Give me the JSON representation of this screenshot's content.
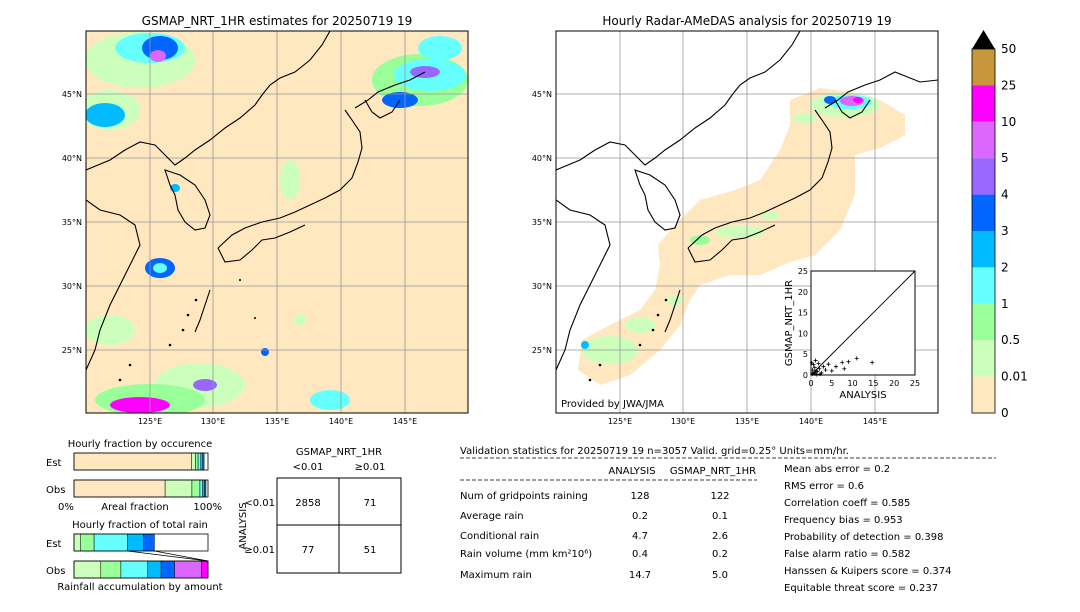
{
  "left_map": {
    "title": "GSMAP_NRT_1HR estimates for 20250719 19",
    "lat_labels": [
      "45°N",
      "40°N",
      "35°N",
      "30°N",
      "25°N"
    ],
    "lon_labels": [
      "125°E",
      "130°E",
      "135°E",
      "140°E",
      "145°E"
    ]
  },
  "right_map": {
    "title": "Hourly Radar-AMeDAS analysis for 20250719 19",
    "lat_labels": [
      "45°N",
      "40°N",
      "35°N",
      "30°N",
      "25°N"
    ],
    "lon_labels": [
      "125°E",
      "130°E",
      "135°E",
      "140°E",
      "145°E"
    ],
    "credit": "Provided by JWA/JMA"
  },
  "colorbar": {
    "labels": [
      "50",
      "25",
      "10",
      "5",
      "4",
      "3",
      "2",
      "1",
      "0.5",
      "0.01",
      "0"
    ],
    "colors": [
      "#c8963c",
      "#ff00ff",
      "#dd66ff",
      "#9966ff",
      "#0066ff",
      "#00bbff",
      "#66ffff",
      "#99ff99",
      "#ccffbb",
      "#ffe8c0"
    ]
  },
  "chart_data": [
    {
      "type": "scatter",
      "xlabel": "ANALYSIS",
      "ylabel": "GSMAP_NRT_1HR",
      "xlim": [
        0,
        25
      ],
      "ylim": [
        0,
        25
      ],
      "ticks": [
        "0",
        "5",
        "10",
        "15",
        "20",
        "25"
      ],
      "points": [
        [
          0.3,
          0.2
        ],
        [
          0.5,
          0.4
        ],
        [
          0.8,
          0.6
        ],
        [
          1.0,
          0.3
        ],
        [
          1.2,
          1.0
        ],
        [
          1.5,
          0.8
        ],
        [
          2.0,
          1.5
        ],
        [
          2.5,
          0.5
        ],
        [
          3.0,
          2.0
        ],
        [
          0.4,
          1.2
        ],
        [
          0.6,
          2.5
        ],
        [
          1.1,
          3.5
        ],
        [
          0.9,
          1.8
        ],
        [
          1.8,
          2.8
        ],
        [
          3.5,
          1.2
        ],
        [
          4.2,
          2.6
        ],
        [
          5.0,
          1.0
        ],
        [
          6.0,
          2.0
        ],
        [
          7.5,
          3.0
        ],
        [
          8.0,
          1.5
        ],
        [
          9.0,
          3.2
        ],
        [
          11.0,
          4.0
        ],
        [
          14.7,
          3.0
        ],
        [
          2.2,
          0.2
        ],
        [
          0.2,
          2.9
        ],
        [
          1.4,
          0.1
        ]
      ]
    },
    {
      "type": "table",
      "title": "Hourly fraction by occurence",
      "rows": [
        "Est",
        "Obs"
      ],
      "xlabel": "Areal fraction",
      "x_ticks": [
        "0%",
        "100%"
      ],
      "segments": {
        "Est": [
          {
            "frac": 0.876,
            "color": "#ffe8c0"
          },
          {
            "frac": 0.03,
            "color": "#ccffbb"
          },
          {
            "frac": 0.02,
            "color": "#99ff99"
          },
          {
            "frac": 0.02,
            "color": "#66ffff"
          },
          {
            "frac": 0.015,
            "color": "#00bbff"
          },
          {
            "frac": 0.01,
            "color": "#0066ff"
          }
        ],
        "Obs": [
          {
            "frac": 0.68,
            "color": "#ffe8c0"
          },
          {
            "frac": 0.2,
            "color": "#ccffbb"
          },
          {
            "frac": 0.06,
            "color": "#99ff99"
          },
          {
            "frac": 0.02,
            "color": "#66ffff"
          },
          {
            "frac": 0.015,
            "color": "#00bbff"
          },
          {
            "frac": 0.01,
            "color": "#0066ff"
          }
        ]
      }
    },
    {
      "type": "table",
      "title": "Hourly fraction of total rain",
      "rows": [
        "Est",
        "Obs"
      ],
      "xlabel": "Rainfall accumulation by amount",
      "segments": {
        "Est": [
          {
            "frac": 0.05,
            "color": "#ccffbb"
          },
          {
            "frac": 0.1,
            "color": "#99ff99"
          },
          {
            "frac": 0.25,
            "color": "#66ffff"
          },
          {
            "frac": 0.12,
            "color": "#00bbff"
          },
          {
            "frac": 0.08,
            "color": "#0066ff"
          }
        ],
        "Obs": [
          {
            "frac": 0.2,
            "color": "#ccffbb"
          },
          {
            "frac": 0.15,
            "color": "#99ff99"
          },
          {
            "frac": 0.2,
            "color": "#66ffff"
          },
          {
            "frac": 0.1,
            "color": "#00bbff"
          },
          {
            "frac": 0.1,
            "color": "#0066ff"
          },
          {
            "frac": 0.2,
            "color": "#dd66ff"
          },
          {
            "frac": 0.05,
            "color": "#ff00ff"
          }
        ]
      }
    },
    {
      "type": "table",
      "title": "GSMAP_NRT_1HR",
      "col_headers": [
        "<0.01",
        "≥0.01"
      ],
      "row_axis_label": "ANALYSIS",
      "row_headers": [
        "<0.01",
        "≥0.01"
      ],
      "cells": [
        [
          "2858",
          "71"
        ],
        [
          "77",
          "51"
        ]
      ]
    }
  ],
  "stats": {
    "header": "Validation statistics for 20250719 19  n=3057 Valid. grid=0.25° Units=mm/hr.",
    "col_analysis": "ANALYSIS",
    "col_gsmap": "GSMAP_NRT_1HR",
    "rows": [
      {
        "label": "Num of gridpoints raining",
        "analysis": "128",
        "gsmap": "122"
      },
      {
        "label": "Average rain",
        "analysis": "0.2",
        "gsmap": "0.1"
      },
      {
        "label": "Conditional rain",
        "analysis": "4.7",
        "gsmap": "2.6"
      },
      {
        "label": "Rain volume (mm km²10⁶)",
        "analysis": "0.4",
        "gsmap": "0.2"
      },
      {
        "label": "Maximum rain",
        "analysis": "14.7",
        "gsmap": "5.0"
      }
    ],
    "scores": [
      "Mean abs error =    0.2",
      "RMS error =    0.6",
      "Correlation coeff =  0.585",
      "Frequency bias =  0.953",
      "Probability of detection =  0.398",
      "False alarm ratio =  0.582",
      "Hanssen & Kuipers score =  0.374",
      "Equitable threat score =  0.237"
    ]
  }
}
